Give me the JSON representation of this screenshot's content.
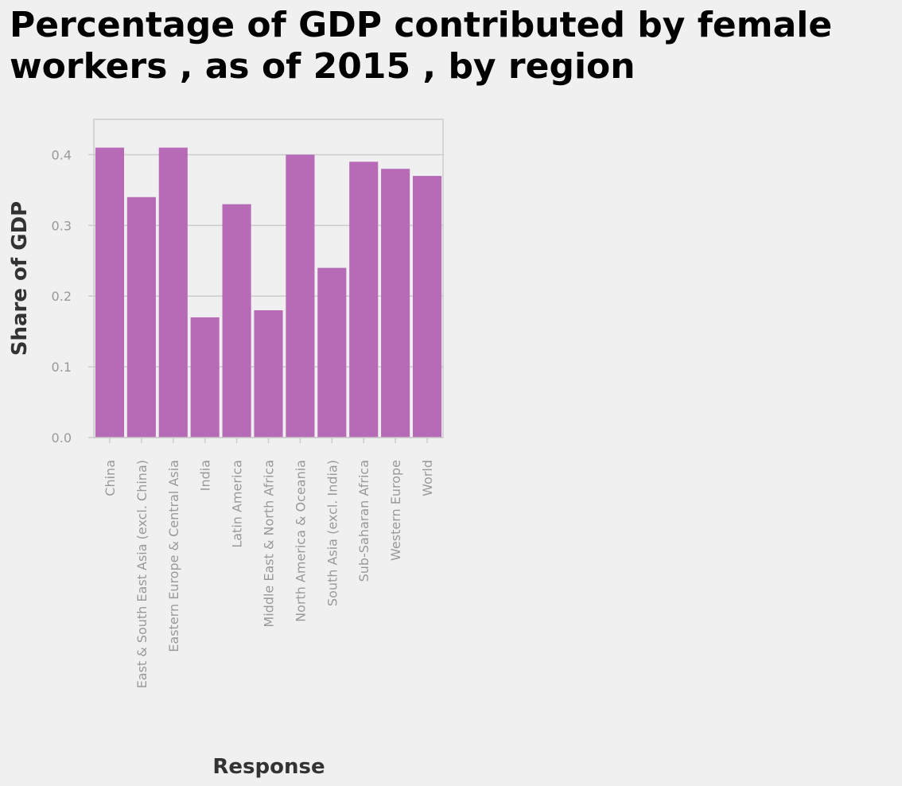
{
  "chart_data": {
    "type": "bar",
    "title_lines": [
      "Percentage of GDP contributed by female",
      "workers , as of 2015 , by region"
    ],
    "xlabel": "Response",
    "ylabel": "Share of GDP",
    "categories": [
      "China",
      "East & South East Asia (excl. China)",
      "Eastern Europe & Central Asia",
      "India",
      "Latin America",
      "Middle East & North Africa",
      "North America & Oceania",
      "South Asia (excl. India)",
      "Sub-Saharan Africa",
      "Western Europe",
      "World"
    ],
    "values": [
      0.41,
      0.34,
      0.41,
      0.17,
      0.33,
      0.18,
      0.4,
      0.24,
      0.39,
      0.38,
      0.37
    ],
    "ylim": [
      0,
      0.45
    ],
    "yticks": [
      "0.0",
      "0.1",
      "0.2",
      "0.3",
      "0.4"
    ],
    "grid": true,
    "colors": {
      "bar": "#b76bb7",
      "background": "#f0f0f0",
      "grid": "#cccccc",
      "axis": "#cccccc",
      "tick_text": "#999999",
      "label_text": "#333333"
    }
  }
}
